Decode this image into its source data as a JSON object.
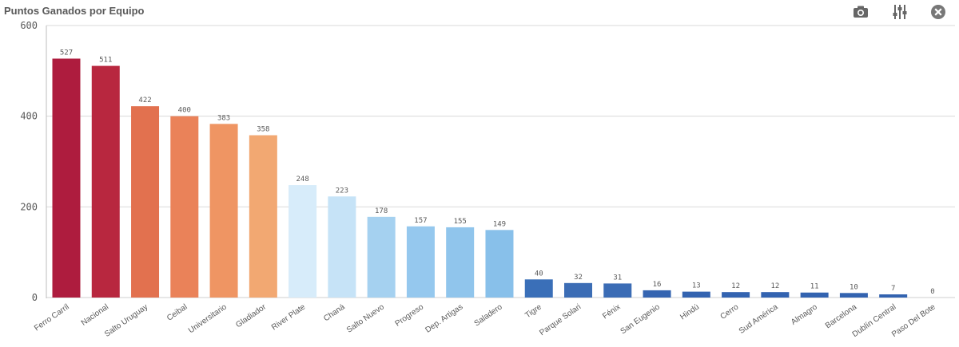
{
  "header": {
    "title": "Puntos Ganados por Equipo",
    "icons": {
      "snapshot": "camera-icon",
      "settings": "sliders-icon",
      "close": "close-circle-icon"
    }
  },
  "chart_data": {
    "type": "bar",
    "title": "Puntos Ganados por Equipo",
    "xlabel": "",
    "ylabel": "",
    "ylim": [
      0,
      600
    ],
    "yticks": [
      0,
      200,
      400,
      600
    ],
    "grid": true,
    "categories": [
      "Ferro Carril",
      "Nacional",
      "Salto Uruguay",
      "Ceibal",
      "Universitario",
      "Gladiador",
      "River Plate",
      "Chaná",
      "Salto Nuevo",
      "Progreso",
      "Dep. Artigas",
      "Saladero",
      "Tigre",
      "Parque Solari",
      "Fénix",
      "San Eugenio",
      "Hindú",
      "Cerro",
      "Sud América",
      "Almagro",
      "Barcelona",
      "Dublín Central",
      "Paso Del Bote"
    ],
    "values": [
      527,
      511,
      422,
      400,
      383,
      358,
      248,
      223,
      178,
      157,
      155,
      149,
      40,
      32,
      31,
      16,
      13,
      12,
      12,
      11,
      10,
      7,
      0
    ],
    "colors": [
      "#ae1c3e",
      "#b8273f",
      "#e2714f",
      "#ea8259",
      "#ef9563",
      "#f2a872",
      "#d7ecfa",
      "#c6e3f7",
      "#a5d1f0",
      "#95c8ee",
      "#90c5ec",
      "#88c0ea",
      "#3a6fb8",
      "#3c6db5",
      "#3b6cb5",
      "#3565b1",
      "#3363b0",
      "#3363b0",
      "#3363b0",
      "#3363b0",
      "#3363b0",
      "#3363b0",
      "#3363b0"
    ]
  }
}
